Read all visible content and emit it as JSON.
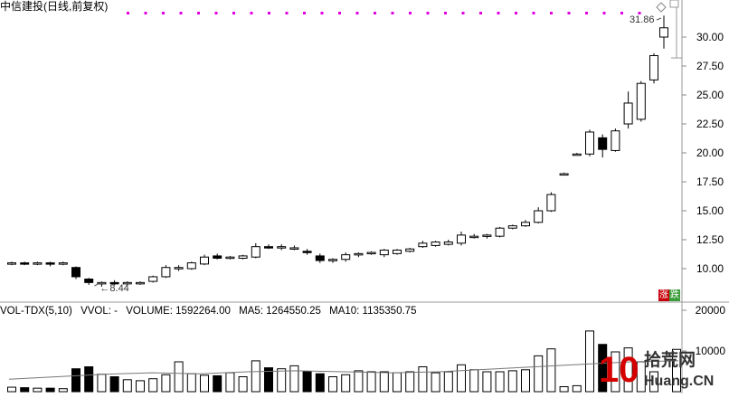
{
  "title": "中信建投(日线,前复权)",
  "price_axis": {
    "ticks": [
      "30.00",
      "27.50",
      "25.00",
      "22.50",
      "20.00",
      "17.50",
      "15.00",
      "12.50",
      "10.00"
    ],
    "min": 8.0,
    "max": 32.5
  },
  "volume_axis": {
    "ticks": [
      "20000",
      "10000"
    ],
    "max": 22000
  },
  "annotations": {
    "low_price": "8.44",
    "high_price": "31.86"
  },
  "volume_indicator": {
    "name": "VOL-TDX(5,10)",
    "vvol": "VVOL: -",
    "volume": "VOLUME: 1592264.00",
    "ma5": "MA5: 1264550.25",
    "ma10": "MA10: 1135350.75"
  },
  "buttons": {
    "zhang": "涨",
    "die": "跌"
  },
  "watermark": {
    "digits": "10",
    "cn": "拾荒网",
    "domain": "Huang.CN"
  },
  "colors": {
    "up": "#000000",
    "down": "#000000",
    "ref_dots": "#e000e0",
    "axis": "#888888",
    "grid": "#e5e5e5"
  },
  "chart_data": {
    "type": "candlestick",
    "x": [
      1,
      2,
      3,
      4,
      5,
      6,
      7,
      8,
      9,
      10,
      11,
      12,
      13,
      14,
      15,
      16,
      17,
      18,
      19,
      20,
      21,
      22,
      23,
      24,
      25,
      26,
      27,
      28,
      29,
      30,
      31,
      32,
      33,
      34,
      35,
      36,
      37,
      38,
      39,
      40,
      41,
      42,
      43,
      44,
      45,
      46,
      47,
      48,
      49,
      50,
      51
    ],
    "ohlc": [
      [
        10.4,
        10.6,
        10.3,
        10.5
      ],
      [
        10.5,
        10.6,
        10.3,
        10.4
      ],
      [
        10.4,
        10.6,
        10.3,
        10.5
      ],
      [
        10.5,
        10.6,
        10.2,
        10.4
      ],
      [
        10.4,
        10.6,
        10.3,
        10.5
      ],
      [
        10.1,
        10.2,
        9.1,
        9.3
      ],
      [
        9.1,
        9.2,
        8.6,
        8.8
      ],
      [
        8.7,
        8.9,
        8.44,
        8.8
      ],
      [
        8.8,
        9.0,
        8.6,
        8.7
      ],
      [
        8.7,
        8.9,
        8.6,
        8.8
      ],
      [
        8.8,
        8.9,
        8.6,
        8.8
      ],
      [
        8.9,
        9.4,
        8.8,
        9.3
      ],
      [
        9.3,
        10.3,
        9.2,
        10.1
      ],
      [
        10.0,
        10.3,
        9.8,
        10.1
      ],
      [
        10.0,
        10.6,
        9.9,
        10.5
      ],
      [
        10.4,
        11.2,
        10.3,
        11.0
      ],
      [
        11.1,
        11.3,
        10.8,
        10.9
      ],
      [
        10.9,
        11.1,
        10.8,
        11.0
      ],
      [
        10.9,
        11.2,
        10.8,
        11.1
      ],
      [
        11.0,
        12.2,
        10.9,
        11.9
      ],
      [
        11.9,
        12.1,
        11.7,
        11.8
      ],
      [
        11.8,
        12.1,
        11.6,
        11.9
      ],
      [
        11.8,
        12.0,
        11.6,
        11.8
      ],
      [
        11.5,
        11.7,
        11.2,
        11.4
      ],
      [
        11.1,
        11.3,
        10.5,
        10.7
      ],
      [
        10.7,
        10.9,
        10.5,
        10.8
      ],
      [
        10.8,
        11.4,
        10.6,
        11.2
      ],
      [
        11.2,
        11.4,
        11.0,
        11.3
      ],
      [
        11.3,
        11.5,
        11.2,
        11.4
      ],
      [
        11.2,
        11.7,
        11.0,
        11.6
      ],
      [
        11.3,
        11.7,
        11.2,
        11.6
      ],
      [
        11.5,
        11.8,
        11.4,
        11.7
      ],
      [
        11.9,
        12.4,
        11.8,
        12.2
      ],
      [
        12.0,
        12.4,
        11.9,
        12.3
      ],
      [
        12.1,
        12.5,
        12.0,
        12.3
      ],
      [
        12.2,
        13.2,
        12.0,
        12.9
      ],
      [
        12.8,
        13.0,
        12.6,
        12.8
      ],
      [
        12.8,
        13.0,
        12.6,
        12.9
      ],
      [
        12.8,
        13.6,
        12.7,
        13.5
      ],
      [
        13.5,
        13.8,
        13.4,
        13.7
      ],
      [
        13.7,
        14.2,
        13.6,
        14.0
      ],
      [
        14.0,
        15.3,
        13.9,
        15.0
      ],
      [
        15.0,
        16.6,
        14.9,
        16.4
      ],
      [
        18.2,
        18.3,
        18.1,
        18.2
      ],
      [
        19.9,
        20.0,
        19.8,
        19.9
      ],
      [
        19.9,
        22.0,
        19.7,
        21.8
      ],
      [
        21.3,
        21.6,
        19.6,
        20.3
      ],
      [
        20.2,
        22.1,
        20.1,
        21.9
      ],
      [
        22.5,
        25.3,
        22.1,
        24.3
      ],
      [
        22.9,
        26.2,
        22.7,
        26.0
      ],
      [
        26.3,
        28.6,
        26.0,
        28.4
      ]
    ],
    "last_bar": [
      30.0,
      31.86,
      29.0,
      30.8
    ],
    "volume_bars": [
      0.09,
      0.08,
      0.07,
      0.07,
      0.06,
      0.46,
      0.5,
      0.35,
      0.3,
      0.24,
      0.22,
      0.26,
      0.34,
      0.6,
      0.36,
      0.33,
      0.32,
      0.38,
      0.3,
      0.62,
      0.48,
      0.46,
      0.52,
      0.4,
      0.36,
      0.3,
      0.34,
      0.42,
      0.4,
      0.4,
      0.38,
      0.4,
      0.5,
      0.38,
      0.4,
      0.54,
      0.44,
      0.4,
      0.4,
      0.42,
      0.44,
      0.72,
      0.86,
      0.1,
      0.12,
      1.22,
      0.95,
      0.8,
      0.88,
      0.6,
      0.4,
      0.85
    ],
    "volume_ma": [
      0.25,
      0.3,
      0.35,
      0.38,
      0.36,
      0.4,
      0.42,
      0.4,
      0.38,
      0.4,
      0.45,
      0.5,
      0.55,
      0.6,
      0.62
    ],
    "ylim": [
      8.0,
      32.5
    ]
  }
}
